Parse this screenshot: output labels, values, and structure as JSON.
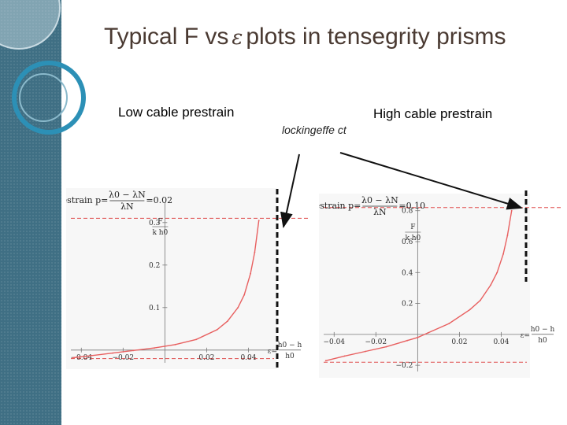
{
  "slide": {
    "title_prefix": "Typical F vs",
    "title_symbol": "ε",
    "title_suffix": "plots in tensegrity prisms",
    "left_label": "Low cable prestrain",
    "right_label": "High cable prestrain",
    "annotation": "lockingeffe ct"
  },
  "chart_data": [
    {
      "type": "line",
      "name": "low-prestrain",
      "prestrain_label": "prestrain p=",
      "prestrain_numerator": "λ0 − λN",
      "prestrain_denominator": "λN",
      "prestrain_value": "=0.02",
      "p": 0.02,
      "ylabel_num": "F",
      "ylabel_den": "k h0",
      "xlabel_num": "h0 − h",
      "xlabel_den": "h0",
      "xlabel_prefix": "ε=",
      "xlim": [
        -0.045,
        0.05
      ],
      "ylim": [
        -0.03,
        0.37
      ],
      "xticks": [
        -0.04,
        -0.02,
        0.02,
        0.04
      ],
      "xtick_labels": [
        "−0.04",
        "−0.02",
        "0.02",
        "0.04"
      ],
      "yticks": [
        0.1,
        0.2,
        0.3
      ],
      "ytick_labels": [
        "0.1",
        "0.2",
        "0.3"
      ],
      "locking_level": 0.31,
      "lower_level": -0.02,
      "x": [
        -0.044,
        -0.035,
        -0.025,
        -0.015,
        -0.005,
        0.0,
        0.005,
        0.015,
        0.025,
        0.03,
        0.035,
        0.038,
        0.041,
        0.043,
        0.045
      ],
      "y": [
        -0.018,
        -0.013,
        -0.007,
        -0.001,
        0.005,
        0.009,
        0.013,
        0.025,
        0.048,
        0.068,
        0.1,
        0.13,
        0.18,
        0.23,
        0.305
      ]
    },
    {
      "type": "line",
      "name": "high-prestrain",
      "prestrain_label": "prestrain p=",
      "prestrain_numerator": "λ0 − λN",
      "prestrain_denominator": "λN",
      "prestrain_value": "=0.10",
      "p": 0.1,
      "ylabel_num": "F",
      "ylabel_den": "k h0",
      "xlabel_num": "h0 − h",
      "xlabel_den": "h0",
      "xlabel_prefix": "ε=",
      "xlim": [
        -0.045,
        0.05
      ],
      "ylim": [
        -0.24,
        0.88
      ],
      "xticks": [
        -0.04,
        -0.02,
        0.02,
        0.04
      ],
      "xtick_labels": [
        "−0.04",
        "−0.02",
        "0.02",
        "0.04"
      ],
      "yticks": [
        -0.2,
        0.2,
        0.4,
        0.6,
        0.8
      ],
      "ytick_labels": [
        "−0.2",
        "0.2",
        "0.4",
        "0.6",
        "0.8"
      ],
      "locking_level": 0.82,
      "lower_level": -0.18,
      "x": [
        -0.044,
        -0.035,
        -0.025,
        -0.015,
        -0.005,
        0.0,
        0.005,
        0.015,
        0.025,
        0.03,
        0.035,
        0.038,
        0.041,
        0.043,
        0.045
      ],
      "y": [
        -0.17,
        -0.14,
        -0.11,
        -0.08,
        -0.04,
        -0.02,
        0.01,
        0.07,
        0.16,
        0.22,
        0.32,
        0.4,
        0.52,
        0.64,
        0.8
      ]
    }
  ],
  "colors": {
    "sidebar": "#3f6f84",
    "title": "#4a3a32",
    "curve": "#e86060",
    "guide": "#e05050",
    "plot_bg": "#f7f7f7"
  }
}
